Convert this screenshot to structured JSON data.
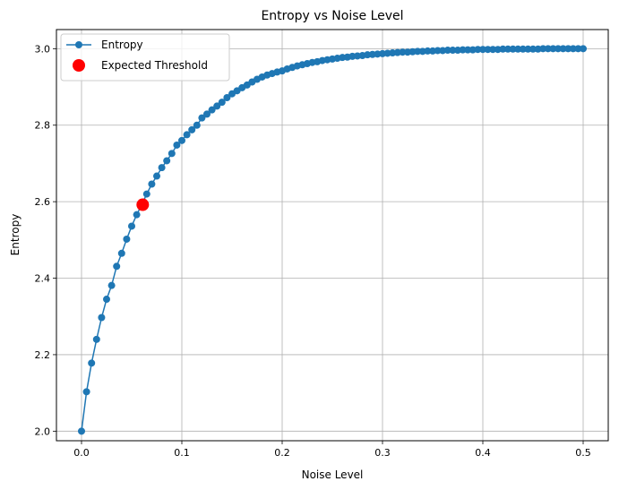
{
  "chart_data": {
    "type": "line",
    "title": "Entropy vs Noise Level",
    "xlabel": "Noise Level",
    "ylabel": "Entropy",
    "xlim": [
      -0.025,
      0.525
    ],
    "ylim": [
      1.975,
      3.05
    ],
    "xticks": [
      0.0,
      0.1,
      0.2,
      0.3,
      0.4,
      0.5
    ],
    "xtick_labels": [
      "0.0",
      "0.1",
      "0.2",
      "0.3",
      "0.4",
      "0.5"
    ],
    "yticks": [
      2.0,
      2.2,
      2.4,
      2.6,
      2.8,
      3.0
    ],
    "ytick_labels": [
      "2.0",
      "2.2",
      "2.4",
      "2.6",
      "2.8",
      "3.0"
    ],
    "grid": true,
    "legend_position": "upper-left",
    "series": [
      {
        "name": "Entropy",
        "color": "#1f77b4",
        "marker": "circle",
        "x": [
          0.0,
          0.005,
          0.01,
          0.015,
          0.02,
          0.025,
          0.03,
          0.035,
          0.04,
          0.045,
          0.05,
          0.055,
          0.06,
          0.065,
          0.07,
          0.075,
          0.08,
          0.085,
          0.09,
          0.095,
          0.1,
          0.105,
          0.11,
          0.115,
          0.12,
          0.125,
          0.13,
          0.135,
          0.14,
          0.145,
          0.15,
          0.155,
          0.16,
          0.165,
          0.17,
          0.175,
          0.18,
          0.185,
          0.19,
          0.195,
          0.2,
          0.205,
          0.21,
          0.215,
          0.22,
          0.225,
          0.23,
          0.235,
          0.24,
          0.245,
          0.25,
          0.255,
          0.26,
          0.265,
          0.27,
          0.275,
          0.28,
          0.285,
          0.29,
          0.295,
          0.3,
          0.305,
          0.31,
          0.315,
          0.32,
          0.325,
          0.33,
          0.335,
          0.34,
          0.345,
          0.35,
          0.355,
          0.36,
          0.365,
          0.37,
          0.375,
          0.38,
          0.385,
          0.39,
          0.395,
          0.4,
          0.405,
          0.41,
          0.415,
          0.42,
          0.425,
          0.43,
          0.435,
          0.44,
          0.445,
          0.45,
          0.455,
          0.46,
          0.465,
          0.47,
          0.475,
          0.48,
          0.485,
          0.49,
          0.495,
          0.5
        ],
        "y": [
          2.0,
          2.103,
          2.178,
          2.24,
          2.297,
          2.345,
          2.381,
          2.431,
          2.465,
          2.502,
          2.536,
          2.566,
          2.592,
          2.62,
          2.646,
          2.667,
          2.689,
          2.707,
          2.726,
          2.748,
          2.76,
          2.775,
          2.788,
          2.8,
          2.819,
          2.829,
          2.84,
          2.85,
          2.86,
          2.872,
          2.882,
          2.89,
          2.898,
          2.905,
          2.913,
          2.92,
          2.926,
          2.931,
          2.935,
          2.939,
          2.942,
          2.947,
          2.951,
          2.955,
          2.958,
          2.961,
          2.964,
          2.966,
          2.969,
          2.971,
          2.973,
          2.975,
          2.977,
          2.978,
          2.98,
          2.981,
          2.982,
          2.984,
          2.985,
          2.986,
          2.987,
          2.988,
          2.989,
          2.99,
          2.991,
          2.991,
          2.992,
          2.993,
          2.993,
          2.994,
          2.994,
          2.995,
          2.995,
          2.996,
          2.996,
          2.996,
          2.997,
          2.997,
          2.997,
          2.998,
          2.998,
          2.998,
          2.998,
          2.998,
          2.999,
          2.999,
          2.999,
          2.999,
          2.999,
          2.999,
          2.999,
          2.999,
          3.0,
          3.0,
          3.0,
          3.0,
          3.0,
          3.0,
          3.0,
          3.0,
          3.0
        ]
      },
      {
        "name": "Expected Threshold",
        "color": "#ff0000",
        "marker": "circle",
        "x": [
          0.061
        ],
        "y": [
          2.592
        ]
      }
    ]
  }
}
